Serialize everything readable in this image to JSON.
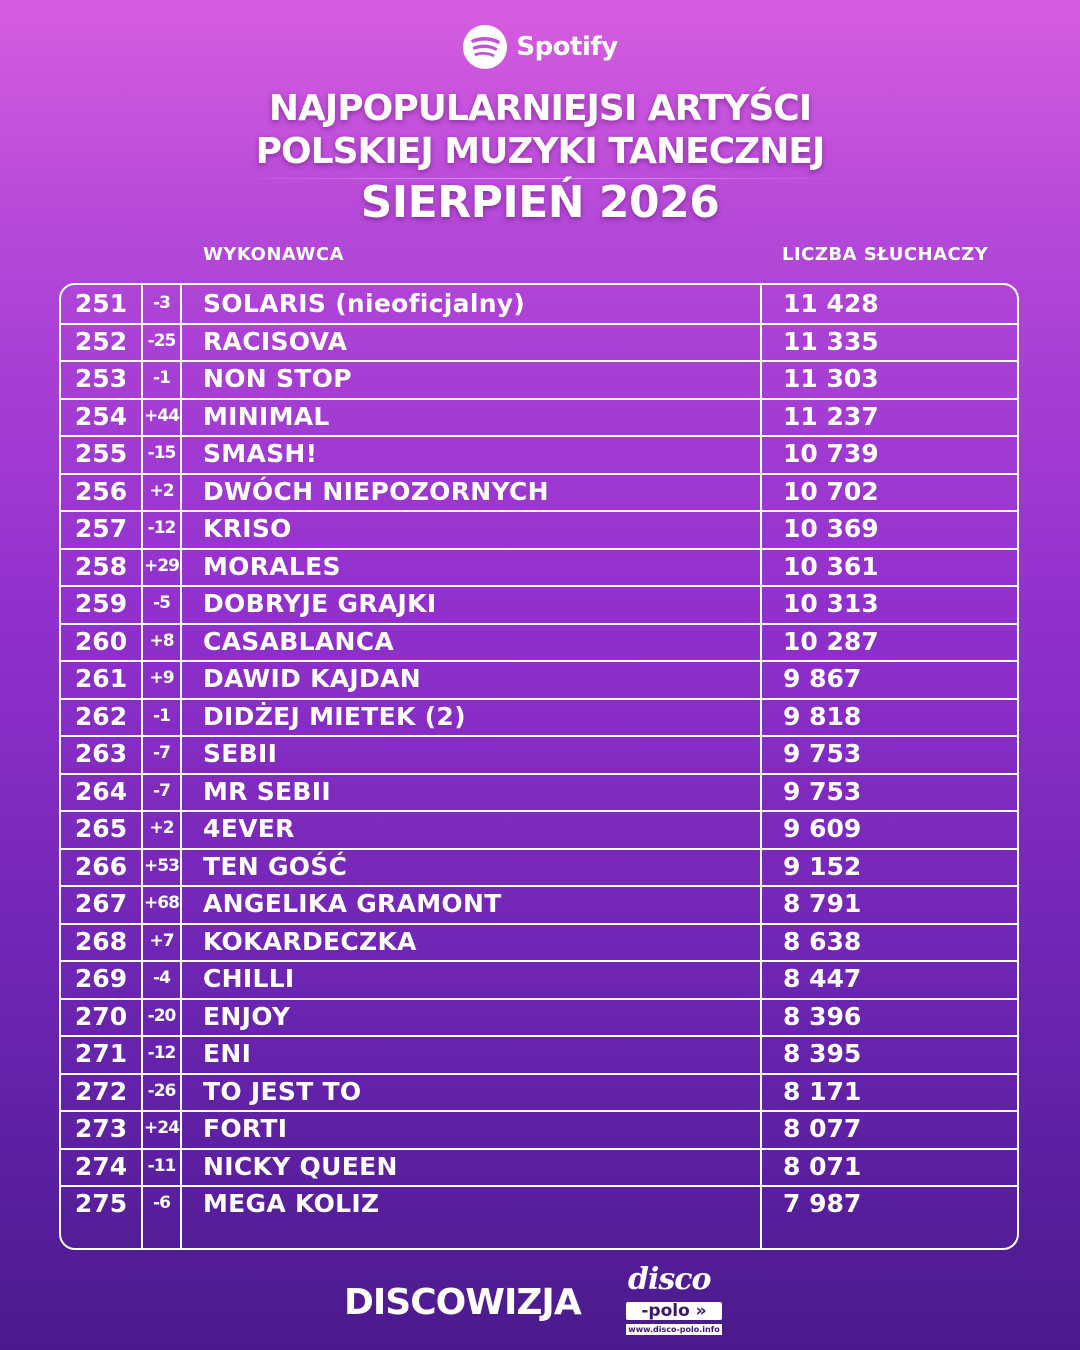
{
  "brand": {
    "name": "Spotify",
    "icon": "spotify-icon"
  },
  "title": {
    "line1": "NAJPOPULARNIEJSI ARTYŚCI",
    "line2": "POLSKIEJ MUZYKI TANECZNEJ",
    "line3": "SIERPIEŃ 2026"
  },
  "columns": {
    "artist": "WYKONAWCA",
    "listeners": "LICZBA SŁUCHACZY"
  },
  "rows": [
    {
      "rank": "251",
      "change": "-3",
      "artist": "SOLARIS (nieoficjalny)",
      "listeners": "11 428"
    },
    {
      "rank": "252",
      "change": "-25",
      "artist": "RACISOVA",
      "listeners": "11 335"
    },
    {
      "rank": "253",
      "change": "-1",
      "artist": "NON STOP",
      "listeners": "11 303"
    },
    {
      "rank": "254",
      "change": "+44",
      "artist": "MINIMAL",
      "listeners": "11 237"
    },
    {
      "rank": "255",
      "change": "-15",
      "artist": "SMASH!",
      "listeners": "10 739"
    },
    {
      "rank": "256",
      "change": "+2",
      "artist": "DWÓCH NIEPOZORNYCH",
      "listeners": "10 702"
    },
    {
      "rank": "257",
      "change": "-12",
      "artist": "KRISO",
      "listeners": "10 369"
    },
    {
      "rank": "258",
      "change": "+29",
      "artist": "MORALES",
      "listeners": "10 361"
    },
    {
      "rank": "259",
      "change": "-5",
      "artist": "DOBRYJE GRAJKI",
      "listeners": "10 313"
    },
    {
      "rank": "260",
      "change": "+8",
      "artist": "CASABLANCA",
      "listeners": "10 287"
    },
    {
      "rank": "261",
      "change": "+9",
      "artist": "DAWID KAJDAN",
      "listeners": "9 867"
    },
    {
      "rank": "262",
      "change": "-1",
      "artist": "DIDŻEJ MIETEK (2)",
      "listeners": "9 818"
    },
    {
      "rank": "263",
      "change": "-7",
      "artist": "SEBII",
      "listeners": "9 753"
    },
    {
      "rank": "264",
      "change": "-7",
      "artist": "MR SEBII",
      "listeners": "9 753"
    },
    {
      "rank": "265",
      "change": "+2",
      "artist": "4EVER",
      "listeners": "9 609"
    },
    {
      "rank": "266",
      "change": "+53",
      "artist": "TEN GOŚĆ",
      "listeners": "9 152"
    },
    {
      "rank": "267",
      "change": "+68",
      "artist": "ANGELIKA GRAMONT",
      "listeners": "8 791"
    },
    {
      "rank": "268",
      "change": "+7",
      "artist": "KOKARDECZKA",
      "listeners": "8 638"
    },
    {
      "rank": "269",
      "change": "-4",
      "artist": "CHILLI",
      "listeners": "8 447"
    },
    {
      "rank": "270",
      "change": "-20",
      "artist": "ENJOY",
      "listeners": "8 396"
    },
    {
      "rank": "271",
      "change": "-12",
      "artist": "ENI",
      "listeners": "8 395"
    },
    {
      "rank": "272",
      "change": "-26",
      "artist": "TO JEST TO",
      "listeners": "8 171"
    },
    {
      "rank": "273",
      "change": "+24",
      "artist": "FORTI",
      "listeners": "8 077"
    },
    {
      "rank": "274",
      "change": "-11",
      "artist": "NICKY QUEEN",
      "listeners": "8 071"
    },
    {
      "rank": "275",
      "change": "-6",
      "artist": "MEGA KOLIZ",
      "listeners": "7 987"
    }
  ],
  "footer": {
    "left": "DISCOWIZJA",
    "logo_top": "disco",
    "logo_mid": "-polo »",
    "logo_url": "www.disco-polo.info"
  }
}
